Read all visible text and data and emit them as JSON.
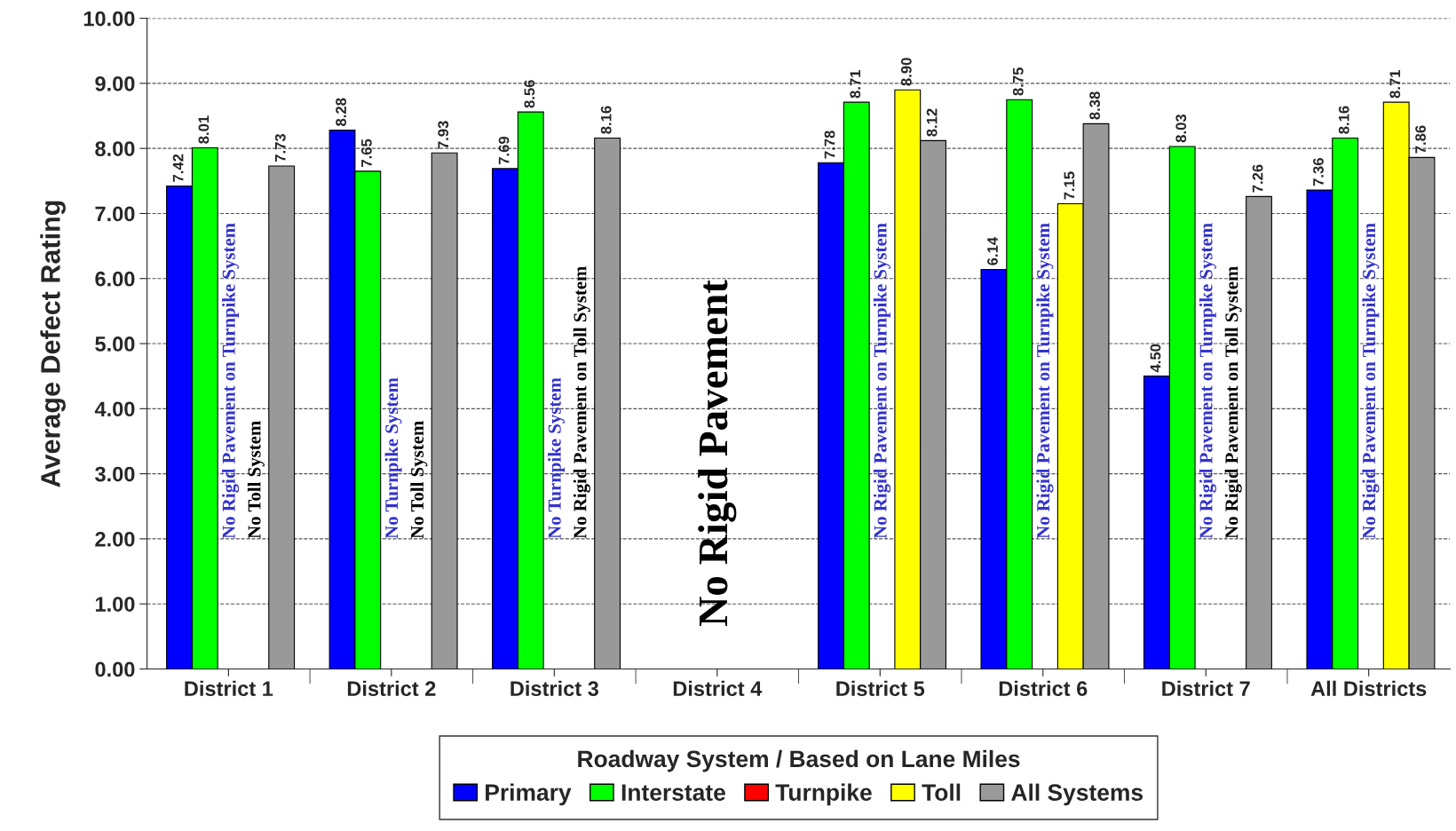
{
  "chart_data": {
    "type": "bar",
    "ylabel": "Average Defect Rating",
    "legend_title": "Roadway System / Based on Lane Miles",
    "legend": "bottom",
    "grid": "y",
    "line_style": "dashed",
    "categories": [
      "District 1",
      "District 2",
      "District 3",
      "District 4",
      "District 5",
      "District 6",
      "District 7",
      "All Districts"
    ],
    "ylim": [
      0,
      10
    ],
    "yticks": [
      {
        "value": 0,
        "label": "0.00"
      },
      {
        "value": 1,
        "label": "1.00"
      },
      {
        "value": 2,
        "label": "2.00"
      },
      {
        "value": 3,
        "label": "3.00"
      },
      {
        "value": 4,
        "label": "4.00"
      },
      {
        "value": 5,
        "label": "5.00"
      },
      {
        "value": 6,
        "label": "6.00"
      },
      {
        "value": 7,
        "label": "7.00"
      },
      {
        "value": 8,
        "label": "8.00"
      },
      {
        "value": 9,
        "label": "9.00"
      },
      {
        "value": 10,
        "label": "10.00"
      }
    ],
    "series": [
      {
        "name": "Primary",
        "color": "#0000ff",
        "values": [
          7.42,
          8.28,
          7.69,
          null,
          7.78,
          6.14,
          4.5,
          7.36
        ],
        "value_labels": [
          "7.42",
          "8.28",
          "7.69",
          null,
          "7.78",
          "6.14",
          "4.50",
          "7.36"
        ]
      },
      {
        "name": "Interstate",
        "color": "#00ff00",
        "values": [
          8.01,
          7.65,
          8.56,
          null,
          8.71,
          8.75,
          8.03,
          8.16
        ],
        "value_labels": [
          "8.01",
          "7.65",
          "8.56",
          null,
          "8.71",
          "8.75",
          "8.03",
          "8.16"
        ]
      },
      {
        "name": "Turnpike",
        "color": "#ff0000",
        "values": [
          null,
          null,
          null,
          null,
          null,
          null,
          null,
          null
        ]
      },
      {
        "name": "Toll",
        "color": "#ffff00",
        "values": [
          null,
          null,
          null,
          null,
          8.9,
          7.15,
          null,
          8.71
        ],
        "value_labels": [
          null,
          null,
          null,
          null,
          "8.90",
          "7.15",
          null,
          "8.71"
        ]
      },
      {
        "name": "All Systems",
        "color": "#999999",
        "values": [
          7.73,
          7.93,
          8.16,
          null,
          8.12,
          8.38,
          7.26,
          7.86
        ],
        "value_labels": [
          "7.73",
          "7.93",
          "8.16",
          null,
          "8.12",
          "8.38",
          "7.26",
          "7.86"
        ]
      }
    ],
    "annotations": [
      "No Rigid Pavement on Turnpike System",
      "No Toll System",
      "No Turnpike System",
      "No Toll System",
      "No Turnpike System",
      "No Rigid Pavement on Toll System",
      "No Rigid Pavement",
      "No Rigid Pavement on Turnpike System",
      "No Rigid Pavement on Turnpike System",
      "No Rigid Pavement on Turnpike System",
      "No Rigid Pavement on Toll System",
      "No Rigid Pavement on Turnpike System"
    ]
  }
}
